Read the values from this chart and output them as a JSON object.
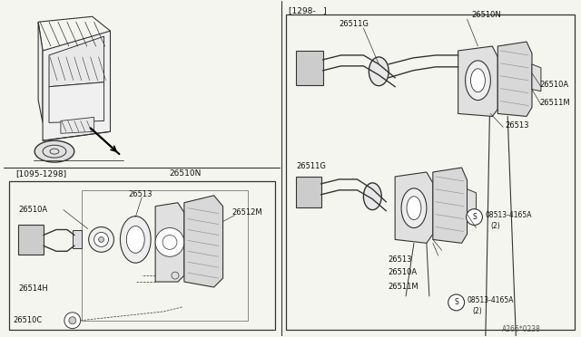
{
  "bg_color": "#f5f5f0",
  "line_color": "#333333",
  "text_color": "#111111",
  "diagram_code": "A266*0238",
  "left_date_label": "[1095-1298]",
  "right_date_label": "[1298-   ]"
}
